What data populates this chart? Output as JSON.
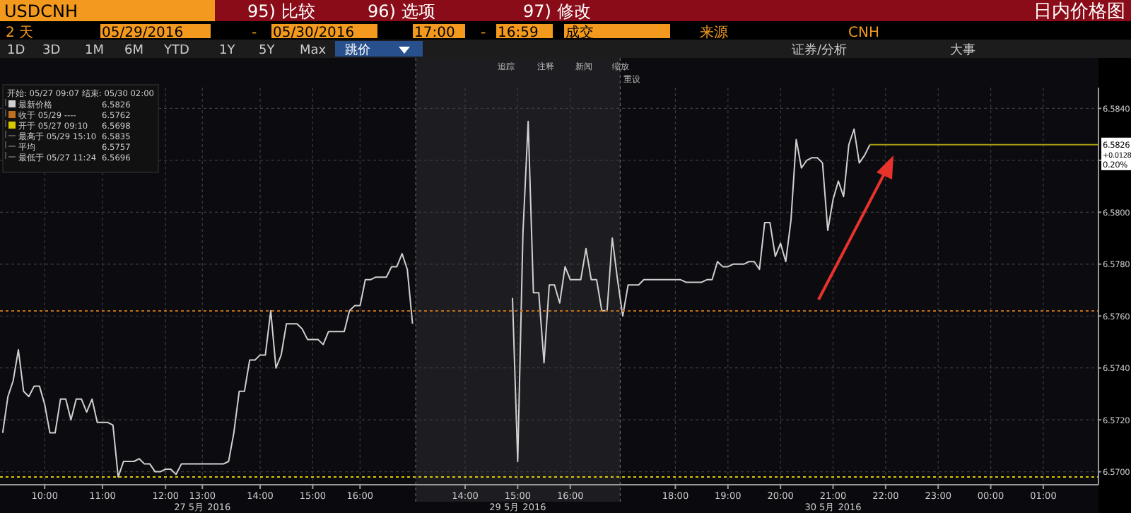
{
  "chart_data": {
    "type": "line",
    "title": "日内价格图",
    "subtitle": "USDCNH",
    "ylim": [
      6.5695,
      6.5848
    ],
    "categories": [
      null,
      null,
      null,
      null,
      null,
      null,
      null,
      null,
      "10:00",
      null,
      null,
      null,
      null,
      null,
      null,
      null,
      null,
      null,
      null,
      "11:00",
      null,
      null,
      null,
      null,
      null,
      null,
      null,
      null,
      null,
      null,
      null,
      "12:00",
      null,
      null,
      null,
      null,
      null,
      null,
      "13:00",
      null,
      null,
      null,
      null,
      null,
      null,
      null,
      null,
      null,
      null,
      "14:00",
      null,
      null,
      null,
      null,
      null,
      null,
      null,
      null,
      null,
      "15:00",
      null,
      null,
      null,
      null,
      null,
      null,
      null,
      null,
      "16:00",
      null,
      null,
      null,
      null,
      null,
      null,
      null,
      null,
      null,
      null,
      null,
      null,
      null,
      null,
      null,
      null,
      null,
      null,
      null,
      "14:00",
      null,
      null,
      null,
      null,
      null,
      null,
      null,
      null,
      null,
      "15:00",
      null,
      null,
      null,
      null,
      null,
      null,
      null,
      null,
      null,
      "16:00",
      null,
      null,
      null,
      null,
      null,
      null,
      null,
      null,
      null,
      null,
      null,
      null,
      null,
      null,
      null,
      null,
      null,
      null,
      null,
      "18:00",
      null,
      null,
      null,
      null,
      null,
      null,
      null,
      null,
      null,
      "19:00",
      null,
      null,
      null,
      null,
      null,
      null,
      null,
      null,
      null,
      "20:00",
      null,
      null,
      null,
      null,
      null,
      null,
      null,
      null,
      null,
      "21:00",
      null,
      null,
      null,
      null,
      null,
      null,
      null,
      null,
      null,
      "22:00",
      null,
      null,
      null,
      null,
      null,
      null,
      null,
      null,
      null,
      "23:00",
      null,
      null,
      null,
      null,
      null,
      null,
      null,
      null,
      null,
      "00:00",
      null,
      null,
      null,
      null,
      null,
      null,
      null,
      null,
      null,
      "01:00",
      null,
      null,
      null,
      null,
      null,
      null,
      null,
      null,
      null,
      null
    ],
    "yticks": [
      {
        "value": 6.57,
        "label": "6.5700"
      },
      {
        "value": 6.572,
        "label": "6.5720"
      },
      {
        "value": 6.574,
        "label": "6.5740"
      },
      {
        "value": 6.576,
        "label": "6.5760"
      },
      {
        "value": 6.578,
        "label": "6.5780"
      },
      {
        "value": 6.58,
        "label": "6.5800"
      },
      {
        "value": 6.582,
        "label": null
      },
      {
        "value": 6.584,
        "label": "6.5840"
      }
    ],
    "grid": true,
    "legend": "top left",
    "ref_lines": [
      {
        "axis": "y",
        "value": 6.5826,
        "label": "6.5826",
        "color": "#a89a10",
        "line_style": "solid"
      },
      {
        "axis": "y",
        "value": 6.5762,
        "color": "#c0701c",
        "line_style": "dotted"
      },
      {
        "axis": "y",
        "value": 6.5698,
        "color": "#d8c800",
        "line_style": "dotted"
      }
    ],
    "series": [
      {
        "name": "最新价格",
        "color": "#d0d0d0",
        "values": [
          6.5715,
          6.5729,
          6.5735,
          6.5747,
          6.5731,
          6.5729,
          6.5733,
          6.5733,
          6.5726,
          6.5715,
          6.5715,
          6.5728,
          6.5728,
          6.572,
          6.5728,
          6.5728,
          6.5723,
          6.5728,
          6.5719,
          6.5719,
          6.5719,
          6.5718,
          6.5698,
          6.5704,
          6.5704,
          6.5704,
          6.5705,
          6.5703,
          6.5703,
          6.57,
          6.57,
          6.5701,
          6.5701,
          6.5699,
          6.5703,
          6.5703,
          6.5703,
          6.5703,
          6.5703,
          6.5703,
          6.5703,
          6.5703,
          6.5703,
          6.5704,
          6.5715,
          6.5731,
          6.5731,
          6.5743,
          6.5743,
          6.5745,
          6.5745,
          6.5762,
          6.574,
          6.5745,
          6.5757,
          6.5757,
          6.5757,
          6.5755,
          6.5751,
          6.5751,
          6.5751,
          6.5749,
          6.5754,
          6.5754,
          6.5754,
          6.5754,
          6.5762,
          6.5764,
          6.5764,
          6.5774,
          6.5774,
          6.5775,
          6.5775,
          6.5775,
          6.5779,
          6.5779,
          6.5784,
          6.5778,
          6.5757,
          null,
          null,
          null,
          null,
          null,
          null,
          null,
          null,
          null,
          null,
          null,
          null,
          null,
          null,
          null,
          null,
          null,
          null,
          null,
          null,
          null,
          null,
          null,
          null,
          null,
          null,
          null,
          null,
          null,
          null,
          null,
          null,
          null,
          null,
          null,
          null,
          null,
          null,
          null,
          null,
          null,
          null,
          null,
          null,
          null,
          null,
          null,
          null,
          null,
          null,
          null,
          null,
          null,
          null,
          null,
          null,
          null,
          null,
          null,
          null,
          null,
          null,
          null,
          null,
          null,
          null,
          null,
          null,
          null,
          null,
          null,
          null,
          null,
          null,
          null,
          null,
          null,
          null,
          null,
          null,
          null,
          null,
          null,
          null,
          null,
          null,
          null,
          null,
          null,
          null,
          null,
          null,
          null,
          null,
          null,
          null,
          null,
          null,
          null,
          null,
          null,
          null,
          null,
          null,
          null,
          null,
          null,
          null,
          null,
          null,
          null,
          null,
          null,
          null,
          null,
          null,
          null,
          null,
          null,
          null,
          null,
          null,
          null,
          null,
          null,
          null,
          null,
          null,
          null,
          null
        ]
      },
      {
        "color": "#d0d0d0",
        "values": [
          null,
          null,
          null,
          null,
          null,
          null,
          null,
          null,
          null,
          null,
          null,
          null,
          null,
          null,
          null,
          null,
          null,
          null,
          null,
          null,
          null,
          null,
          null,
          null,
          null,
          null,
          null,
          null,
          null,
          null,
          null,
          null,
          null,
          null,
          null,
          null,
          null,
          null,
          null,
          null,
          null,
          null,
          null,
          null,
          null,
          null,
          null,
          null,
          null,
          null,
          null,
          null,
          null,
          null,
          null,
          null,
          null,
          null,
          null,
          null,
          null,
          null,
          null,
          null,
          null,
          null,
          null,
          null,
          null,
          null,
          null,
          null,
          null,
          null,
          null,
          null,
          null,
          null,
          null,
          null,
          null,
          null,
          null,
          null,
          null,
          null,
          null,
          null,
          null,
          null,
          null,
          null,
          null,
          null,
          null,
          null,
          null,
          6.5767,
          6.5704,
          6.5792,
          6.5835,
          6.5769,
          6.5769,
          6.5742,
          6.5772,
          6.5772,
          6.5765,
          6.5779,
          6.5774,
          6.5774,
          6.5774,
          6.5786,
          6.5774,
          6.5774,
          6.5762,
          6.5762,
          6.579,
          6.5774,
          6.576,
          6.5772,
          6.5772,
          6.5772,
          6.5774,
          6.5774,
          6.5774,
          6.5774,
          6.5774,
          6.5774,
          6.5774,
          6.5774,
          6.5773,
          6.5773,
          6.5773,
          6.5773,
          6.5774,
          6.5774,
          6.5781,
          6.5779,
          6.5779,
          6.578,
          6.578,
          6.578,
          6.5781,
          6.5781,
          6.5778,
          6.5796,
          6.5796,
          6.5783,
          6.5788,
          6.5781,
          6.5797,
          6.5828,
          6.5817,
          6.582,
          6.5821,
          6.5821,
          6.5819,
          6.5793,
          6.5805,
          6.5812,
          6.5806,
          6.5826,
          6.5832,
          6.5819,
          6.5822,
          6.5826,
          null,
          null,
          null,
          null,
          null,
          null,
          null,
          null,
          null,
          null,
          null,
          null,
          null,
          null,
          null,
          null,
          null,
          null,
          null,
          null,
          null,
          null,
          null,
          null,
          null,
          null,
          null,
          null,
          null,
          null,
          null,
          null,
          null,
          null,
          null,
          null,
          null,
          null,
          null,
          null,
          null,
          null,
          null
        ]
      }
    ],
    "annotations": [
      "开始: 05/27 09:07 结束: 05/30 02:00",
      "6.5826",
      "6.5762",
      "6.5698",
      "最高于 05/29 15:10",
      "6.5835",
      "平均",
      "6.5757",
      "最低于 05/27 11:24",
      "6.5696",
      "+0.0128",
      "0.20%",
      "27 5月 2016",
      "29 5月 2016",
      "30 5月 2016",
      "95) 比较",
      "96) 选项",
      "97) 修改",
      "2 天",
      "05/29/2016",
      "-",
      "05/30/2016",
      "17:00",
      "-",
      "16:59",
      "成交",
      "来源",
      "CNH",
      "1D",
      "3D",
      "1M",
      "6M",
      "YTD",
      "1Y",
      "5Y",
      "Max",
      "跳价",
      "证券/分析",
      "大事",
      "追踪",
      "注释",
      "新闻",
      "缩放",
      "重设",
      "收于 05/29 ----",
      "开于 05/27 09:10"
    ]
  }
}
